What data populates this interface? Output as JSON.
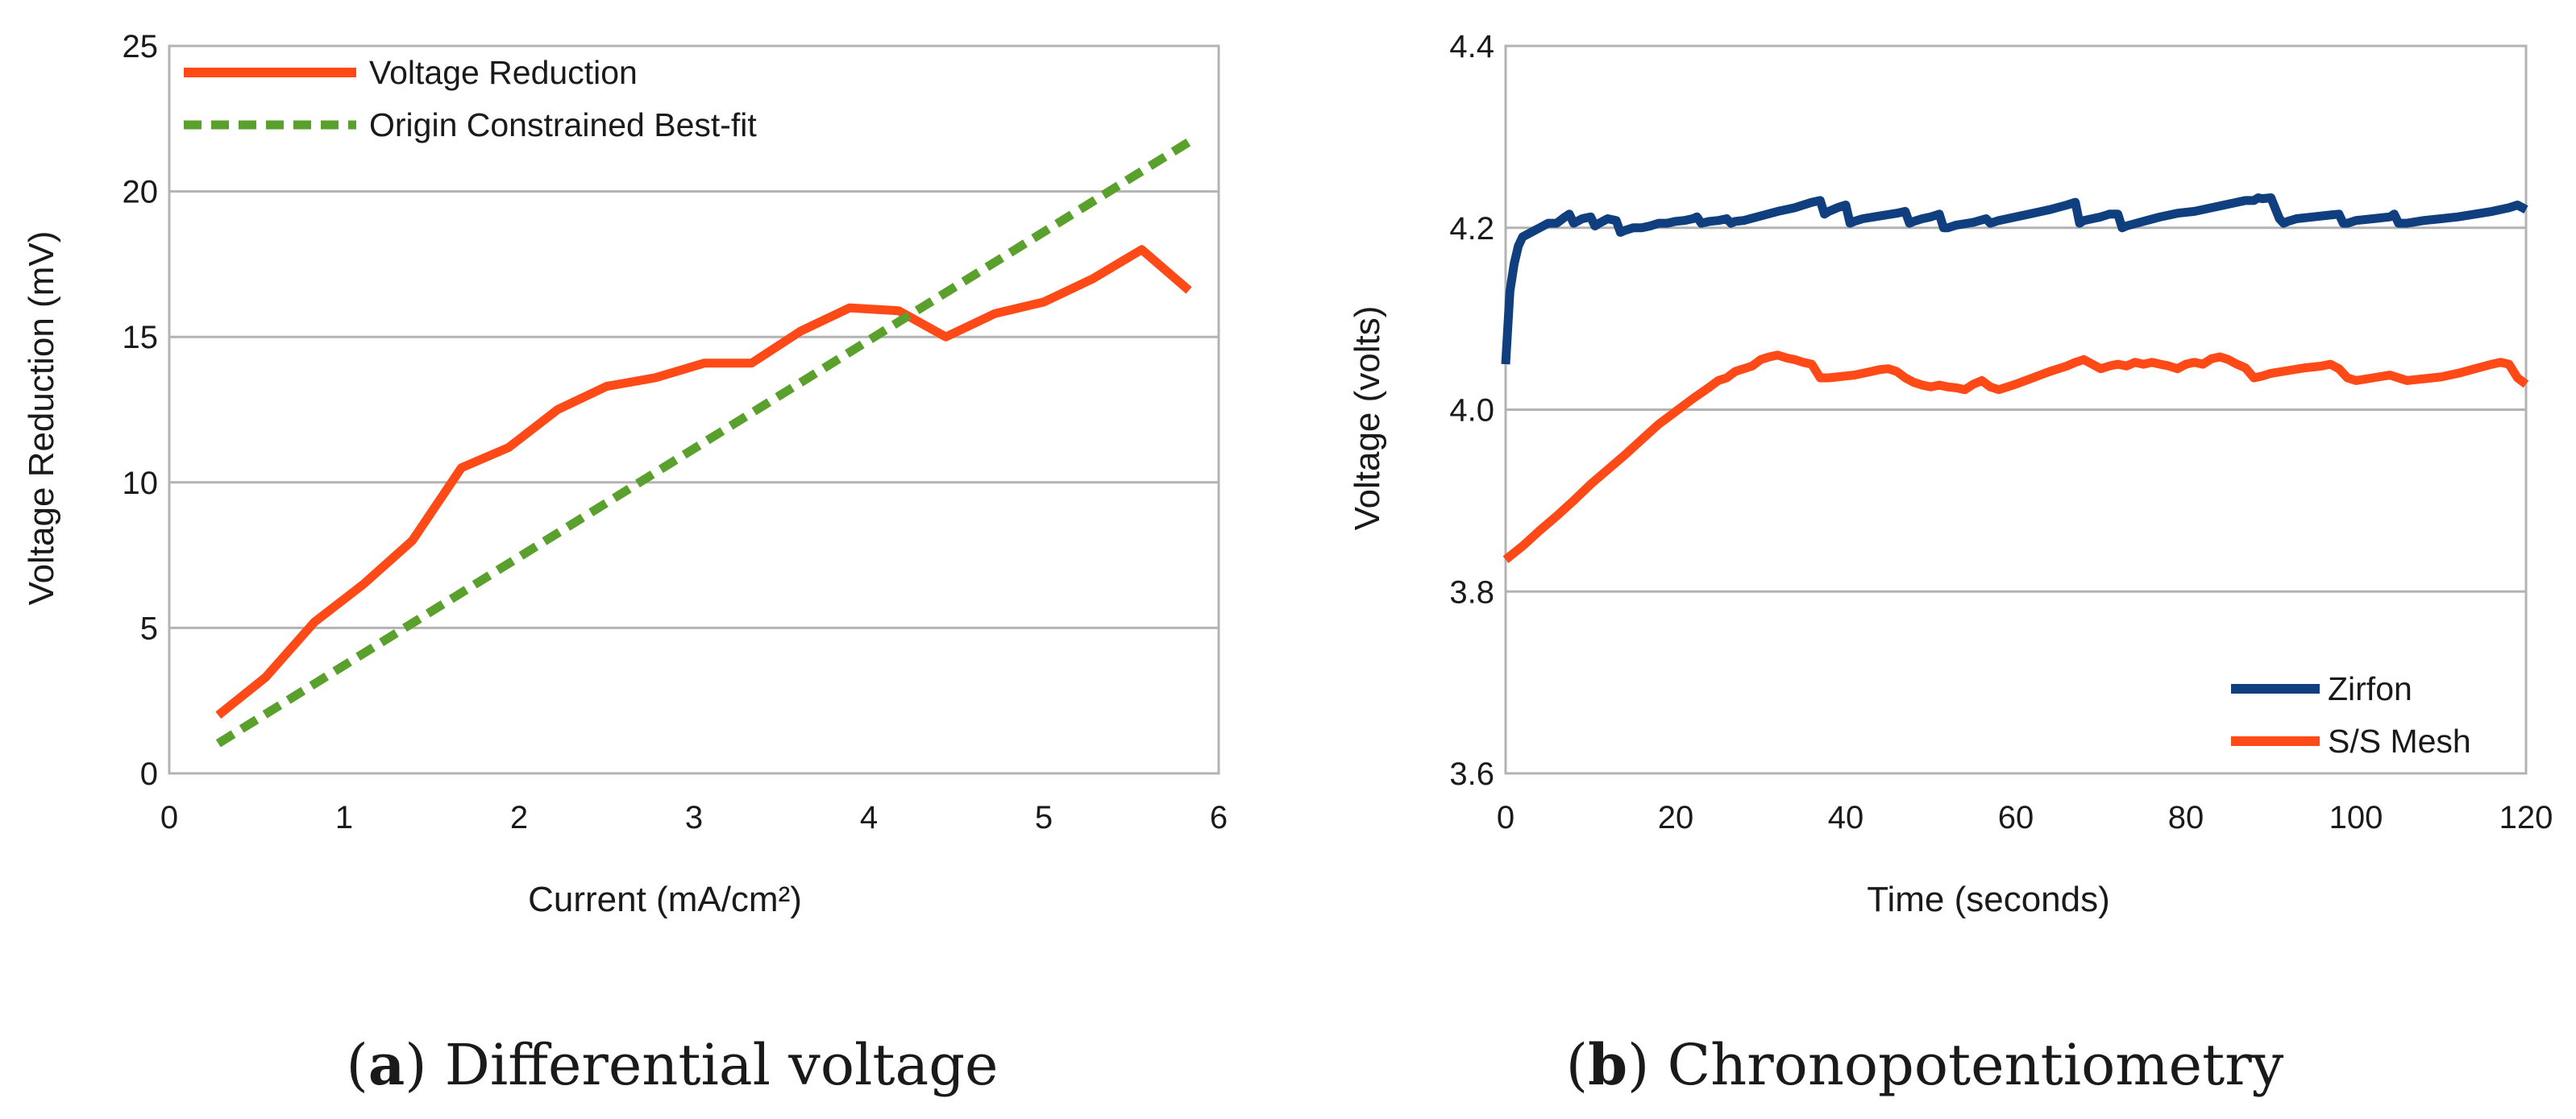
{
  "chart_data": [
    {
      "type": "line",
      "title": "",
      "xlabel": "Current (mA/cm²)",
      "ylabel": "Voltage Reduction (mV)",
      "xlim": [
        0,
        6
      ],
      "ylim": [
        0,
        25
      ],
      "xticks": [
        "0",
        "1",
        "2",
        "3",
        "4",
        "5",
        "6"
      ],
      "yticks": [
        "0",
        "5",
        "10",
        "15",
        "20",
        "25"
      ],
      "grid": true,
      "legend_position": "top-left",
      "caption_label": "a",
      "caption_text": "Differential voltage",
      "series": [
        {
          "name": "Voltage Reduction",
          "color": "#ff4a17",
          "style": "solid",
          "x": [
            0.28,
            0.55,
            0.83,
            1.11,
            1.39,
            1.67,
            1.94,
            2.22,
            2.5,
            2.78,
            3.06,
            3.33,
            3.61,
            3.89,
            4.17,
            4.44,
            4.72,
            5.0,
            5.28,
            5.56,
            5.83
          ],
          "y": [
            2.0,
            3.3,
            5.2,
            6.5,
            8.0,
            10.5,
            11.2,
            12.5,
            13.3,
            13.6,
            14.1,
            14.1,
            15.2,
            16.0,
            15.9,
            15.0,
            15.8,
            16.2,
            17.0,
            18.0,
            16.6
          ]
        },
        {
          "name": "Origin Constrained Best-fit",
          "color": "#5aa02c",
          "style": "dashed",
          "x": [
            0.28,
            5.83
          ],
          "y": [
            1.03,
            21.7
          ]
        }
      ]
    },
    {
      "type": "line",
      "title": "",
      "xlabel": "Time (seconds)",
      "ylabel": "Voltage (volts)",
      "xlim": [
        0,
        120
      ],
      "ylim": [
        3.6,
        4.4
      ],
      "xticks": [
        "0",
        "20",
        "40",
        "60",
        "80",
        "100",
        "120"
      ],
      "yticks": [
        "3.6",
        "3.8",
        "4.0",
        "4.2",
        "4.4"
      ],
      "grid": true,
      "legend_position": "bottom-right",
      "caption_label": "b",
      "caption_text": "Chronopotentiometry",
      "series": [
        {
          "name": "Zirfon",
          "color": "#0f3f7f",
          "style": "solid",
          "x": [
            0,
            0.5,
            1,
            1.5,
            2,
            3,
            4,
            5,
            6,
            7,
            7.5,
            8,
            9,
            10,
            10.5,
            11,
            12,
            13,
            13.5,
            14,
            15,
            16,
            17,
            18,
            19,
            20,
            21,
            22,
            22.5,
            23,
            24,
            25,
            26,
            26.5,
            27,
            28,
            30,
            32,
            34,
            36,
            37,
            37.5,
            38,
            39,
            40,
            40.5,
            41,
            42,
            44,
            46,
            47,
            47.5,
            48,
            49,
            50,
            51,
            51.5,
            52,
            53,
            55,
            56.5,
            57,
            58,
            60,
            62,
            64,
            66,
            67,
            67.5,
            68,
            69,
            70,
            71,
            72,
            72.5,
            73,
            75,
            77,
            79,
            81,
            83,
            85,
            87,
            88,
            88.5,
            89,
            90,
            91,
            91.5,
            92,
            93,
            95,
            97,
            98,
            98.5,
            99,
            100,
            102,
            104,
            104.5,
            105,
            106,
            108,
            110,
            112,
            114,
            116,
            118,
            119,
            120
          ],
          "y": [
            4.05,
            4.13,
            4.16,
            4.18,
            4.19,
            4.195,
            4.2,
            4.205,
            4.205,
            4.212,
            4.215,
            4.205,
            4.21,
            4.212,
            4.202,
            4.205,
            4.21,
            4.208,
            4.195,
            4.197,
            4.2,
            4.2,
            4.202,
            4.205,
            4.205,
            4.207,
            4.208,
            4.21,
            4.212,
            4.205,
            4.207,
            4.208,
            4.21,
            4.205,
            4.207,
            4.208,
            4.213,
            4.218,
            4.222,
            4.228,
            4.23,
            4.215,
            4.218,
            4.222,
            4.225,
            4.205,
            4.207,
            4.21,
            4.213,
            4.216,
            4.218,
            4.205,
            4.207,
            4.21,
            4.212,
            4.215,
            4.2,
            4.2,
            4.203,
            4.206,
            4.21,
            4.205,
            4.208,
            4.212,
            4.216,
            4.22,
            4.225,
            4.228,
            4.205,
            4.208,
            4.21,
            4.212,
            4.215,
            4.215,
            4.2,
            4.202,
            4.207,
            4.212,
            4.216,
            4.218,
            4.222,
            4.226,
            4.23,
            4.23,
            4.233,
            4.232,
            4.233,
            4.21,
            4.205,
            4.207,
            4.21,
            4.212,
            4.214,
            4.215,
            4.205,
            4.205,
            4.208,
            4.21,
            4.212,
            4.215,
            4.205,
            4.205,
            4.208,
            4.21,
            4.212,
            4.215,
            4.218,
            4.222,
            4.225,
            4.22
          ]
        },
        {
          "name": "S/S Mesh",
          "color": "#ff4a17",
          "style": "solid",
          "x": [
            0,
            2,
            4,
            6,
            8,
            10,
            12,
            14,
            16,
            18,
            20,
            22,
            24,
            25,
            26,
            27,
            28,
            29,
            30,
            31,
            32,
            33,
            34,
            35,
            36,
            37,
            38,
            39,
            40,
            41,
            42,
            43,
            44,
            45,
            46,
            47,
            48,
            49,
            50,
            51,
            52,
            53,
            54,
            55,
            56,
            57,
            58,
            60,
            62,
            64,
            66,
            67,
            68,
            69,
            70,
            71,
            72,
            73,
            74,
            75,
            76,
            77,
            78,
            79,
            80,
            81,
            82,
            83,
            84,
            85,
            86,
            87,
            88,
            89,
            90,
            92,
            94,
            96,
            97,
            98,
            99,
            100,
            102,
            104,
            106,
            108,
            110,
            112,
            114,
            116,
            117,
            118,
            119,
            120
          ],
          "y": [
            3.835,
            3.85,
            3.867,
            3.883,
            3.9,
            3.918,
            3.934,
            3.95,
            3.967,
            3.984,
            3.998,
            4.012,
            4.025,
            4.032,
            4.035,
            4.042,
            4.045,
            4.048,
            4.055,
            4.058,
            4.06,
            4.057,
            4.055,
            4.052,
            4.05,
            4.035,
            4.035,
            4.036,
            4.037,
            4.038,
            4.04,
            4.042,
            4.044,
            4.045,
            4.042,
            4.035,
            4.03,
            4.027,
            4.025,
            4.027,
            4.025,
            4.024,
            4.022,
            4.028,
            4.032,
            4.025,
            4.022,
            4.028,
            4.035,
            4.042,
            4.048,
            4.052,
            4.055,
            4.05,
            4.045,
            4.048,
            4.05,
            4.048,
            4.052,
            4.05,
            4.052,
            4.05,
            4.048,
            4.045,
            4.05,
            4.052,
            4.05,
            4.056,
            4.058,
            4.055,
            4.05,
            4.046,
            4.035,
            4.037,
            4.04,
            4.043,
            4.046,
            4.048,
            4.05,
            4.045,
            4.035,
            4.032,
            4.035,
            4.038,
            4.032,
            4.034,
            4.036,
            4.04,
            4.045,
            4.05,
            4.052,
            4.05,
            4.035,
            4.028
          ]
        }
      ]
    }
  ]
}
